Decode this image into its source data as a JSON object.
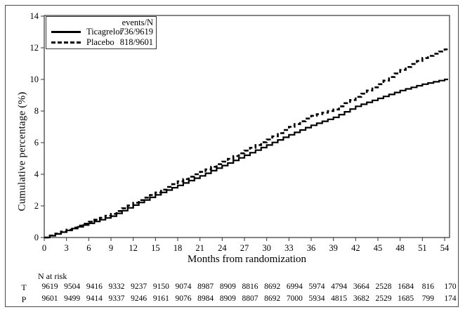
{
  "figure": {
    "y_axis_label": "Cumulative percentage (%)",
    "x_axis_label": "Months from randomization",
    "legend": {
      "header": "events/N",
      "items": [
        {
          "label": "Ticagrelor",
          "events": "736/9619",
          "line_style": "solid"
        },
        {
          "label": "Placebo",
          "events": "818/9601",
          "line_style": "dashed"
        }
      ]
    },
    "n_at_risk": {
      "title": "N at risk",
      "rows": [
        {
          "label": "T",
          "values": [
            9619,
            9504,
            9416,
            9332,
            9237,
            9150,
            9074,
            8987,
            8909,
            8816,
            8692,
            6994,
            5974,
            4794,
            3664,
            2528,
            1684,
            816,
            170
          ]
        },
        {
          "label": "P",
          "values": [
            9601,
            9499,
            9414,
            9337,
            9246,
            9161,
            9076,
            8984,
            8909,
            8807,
            8692,
            7000,
            5934,
            4815,
            3682,
            2529,
            1685,
            799,
            174
          ]
        }
      ]
    },
    "colors": {
      "curve": "#000000",
      "axis": "#333333",
      "frame": "#4a4a4a",
      "background": "#ffffff"
    }
  },
  "chart_data": {
    "type": "line",
    "subtype": "kaplan-meier-step",
    "title": "",
    "xlabel": "Months from randomization",
    "ylabel": "Cumulative percentage (%)",
    "x": [
      0,
      3,
      6,
      9,
      12,
      15,
      18,
      21,
      24,
      27,
      30,
      33,
      36,
      39,
      42,
      45,
      48,
      51,
      54
    ],
    "series": [
      {
        "name": "Ticagrelor",
        "style": "solid",
        "events_n": "736/9619",
        "values": [
          0,
          0.45,
          0.9,
          1.35,
          2.05,
          2.7,
          3.3,
          3.9,
          4.55,
          5.2,
          5.85,
          6.5,
          7.1,
          7.6,
          8.3,
          8.8,
          9.3,
          9.7,
          10.0
        ]
      },
      {
        "name": "Placebo",
        "style": "dashed",
        "events_n": "818/9601",
        "values": [
          0,
          0.5,
          1.0,
          1.5,
          2.2,
          2.85,
          3.55,
          4.15,
          4.8,
          5.5,
          6.2,
          7.0,
          7.7,
          8.1,
          8.9,
          9.7,
          10.6,
          11.35,
          11.9
        ]
      }
    ],
    "xlim": [
      0,
      54
    ],
    "ylim": [
      0,
      14
    ],
    "x_ticks": [
      0,
      3,
      6,
      9,
      12,
      15,
      18,
      21,
      24,
      27,
      30,
      33,
      36,
      39,
      42,
      45,
      48,
      51,
      54
    ],
    "y_ticks": [
      0,
      2,
      4,
      6,
      8,
      10,
      12,
      14
    ],
    "grid": false,
    "legend_position": "top-left"
  }
}
